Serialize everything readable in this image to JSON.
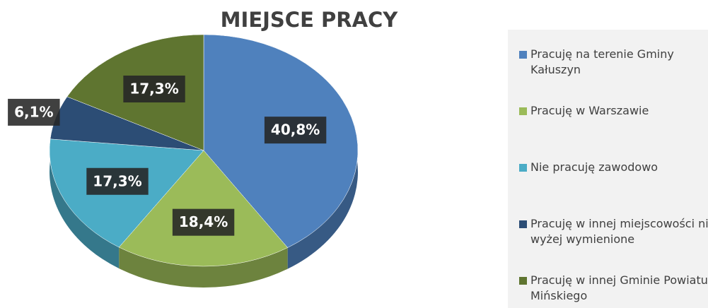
{
  "chart_data": {
    "type": "pie",
    "title": "MIEJSCE PRACY",
    "categories": [
      "Pracuję na terenie Gminy Kałuszyn",
      "Pracuję w Warszawie",
      "Nie pracuję zawodowo",
      "Pracuję w innej miejscowości niż wyżej wymienione",
      "Pracuję w innej Gminie Powiatu Mińskiego"
    ],
    "values": [
      40.8,
      18.4,
      17.3,
      6.1,
      17.3
    ],
    "value_labels": [
      "40,8%",
      "18,4%",
      "17,3%",
      "6,1%",
      "17,3%"
    ],
    "colors": [
      "#4f81bd",
      "#9bbb59",
      "#4bacc6",
      "#2c4d75",
      "#5f7530"
    ],
    "legend": "right"
  }
}
